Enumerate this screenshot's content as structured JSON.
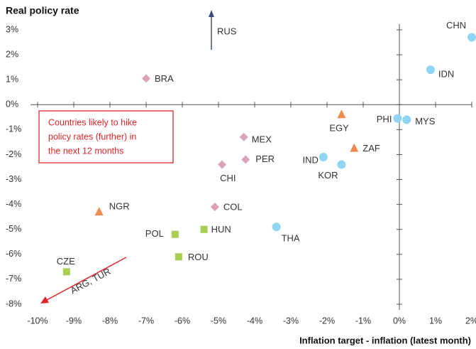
{
  "chart_data": {
    "type": "scatter",
    "title": "Real policy rate",
    "x_label": "Inflation target - inflation (latest month)",
    "xlim": [
      -10,
      2
    ],
    "ylim": [
      -8,
      3
    ],
    "xticks": [
      {
        "value": -10,
        "label": "-10%"
      },
      {
        "value": -9,
        "label": "-9%"
      },
      {
        "value": -8,
        "label": "-8%"
      },
      {
        "value": -7,
        "label": "-7%"
      },
      {
        "value": -6,
        "label": "-6%"
      },
      {
        "value": -5,
        "label": "-5%"
      },
      {
        "value": -4,
        "label": "-4%"
      },
      {
        "value": -3,
        "label": "-3%"
      },
      {
        "value": -2,
        "label": "-2%"
      },
      {
        "value": -1,
        "label": "-1%"
      },
      {
        "value": 0,
        "label": "0%"
      },
      {
        "value": 1,
        "label": "1%"
      },
      {
        "value": 2,
        "label": "2%"
      }
    ],
    "yticks": [
      {
        "value": 3,
        "label": "3%"
      },
      {
        "value": 2,
        "label": "2%"
      },
      {
        "value": 1,
        "label": "1%"
      },
      {
        "value": 0,
        "label": "0%"
      },
      {
        "value": -1,
        "label": "-1%"
      },
      {
        "value": -2,
        "label": "-2%"
      },
      {
        "value": -3,
        "label": "-3%"
      },
      {
        "value": -4,
        "label": "-4%"
      },
      {
        "value": -5,
        "label": "-5%"
      },
      {
        "value": -6,
        "label": "-6%"
      },
      {
        "value": -7,
        "label": "-7%"
      },
      {
        "value": -8,
        "label": "-8%"
      }
    ],
    "series": [
      {
        "marker": "circle",
        "color": "#8fd4f2",
        "labels": [
          "CHN",
          "IDN",
          "PHI",
          "MYS",
          "IND",
          "KOR",
          "THA"
        ],
        "x": [
          2.0,
          0.86,
          -0.05,
          0.2,
          -2.1,
          -1.6,
          -3.4
        ],
        "values": [
          2.7,
          1.4,
          -0.55,
          -0.6,
          -2.1,
          -2.4,
          -4.9
        ]
      },
      {
        "marker": "diamond",
        "color": "#d9a3b8",
        "labels": [
          "BRA",
          "MEX",
          "PER",
          "CHI",
          "COL"
        ],
        "x": [
          -7.0,
          -4.3,
          -4.25,
          -4.9,
          -5.1
        ],
        "values": [
          1.05,
          -1.3,
          -2.2,
          -2.4,
          -4.1
        ]
      },
      {
        "marker": "triangle",
        "color": "#f28c4e",
        "labels": [
          "EGY",
          "ZAF",
          "NGR"
        ],
        "x": [
          -1.6,
          -1.25,
          -8.3
        ],
        "values": [
          -0.4,
          -1.75,
          -4.3
        ]
      },
      {
        "marker": "square",
        "color": "#a8cf52",
        "labels": [
          "HUN",
          "POL",
          "ROU",
          "CZE"
        ],
        "x": [
          -5.4,
          -6.2,
          -6.1,
          -9.2
        ],
        "values": [
          -5.0,
          -5.2,
          -6.1,
          -6.7
        ]
      }
    ],
    "annotations": {
      "up_arrow": "RUS",
      "down_arrow": "ARG, TUR",
      "box": [
        "Countries likely to hike",
        "policy rates (further) in",
        "the next 12 months"
      ]
    }
  }
}
